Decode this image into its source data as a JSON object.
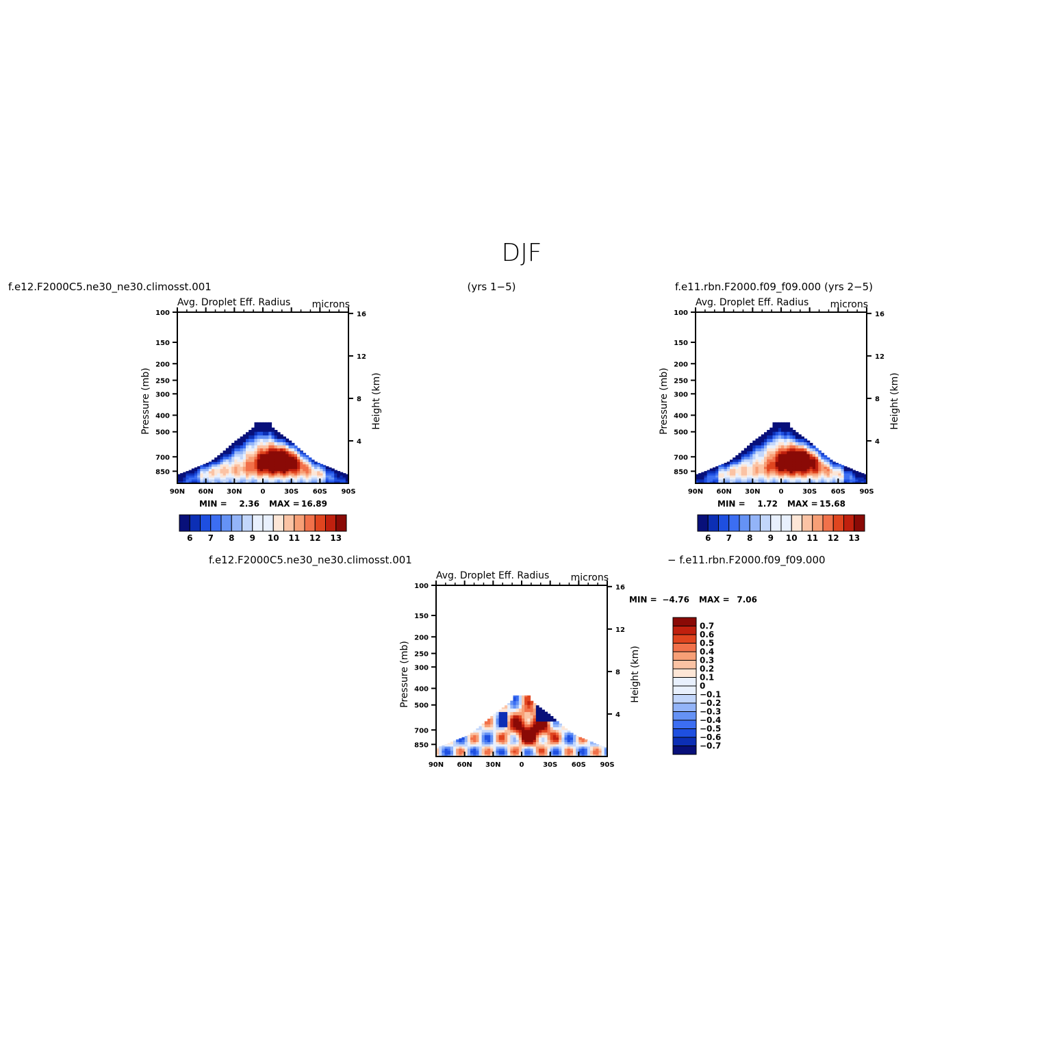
{
  "figure_title": "DJF",
  "top_left_caption": "f.e12.F2000C5.ne30_ne30.climosst.001",
  "top_middle_caption": "(yrs 1−5)",
  "top_right_caption": "f.e11.rbn.F2000.f09_f09.000 (yrs 2−5)",
  "bottom_left_caption": "f.e12.F2000C5.ne30_ne30.climosst.001",
  "bottom_right_caption": "− f.e11.rbn.F2000.f09_f09.000",
  "colors": {
    "field_scale": [
      "#08107a",
      "#0c2fb5",
      "#1e4fe0",
      "#3c6ef2",
      "#6592f5",
      "#93b4f8",
      "#c2d6fb",
      "#e8f0fd",
      "#fde6d6",
      "#fbc3a4",
      "#f79f76",
      "#f1714a",
      "#e0451f",
      "#c0200e",
      "#8a0a06"
    ],
    "diff_scale": [
      "#08107a",
      "#0c2fb5",
      "#1e4fe0",
      "#3c6ef2",
      "#6592f5",
      "#93b4f8",
      "#c2d6fb",
      "#e8f0fd",
      "#fde6d6",
      "#fbc3a4",
      "#f79f76",
      "#f1714a",
      "#e0451f",
      "#c0200e",
      "#8a0a06"
    ]
  },
  "chart_data": [
    {
      "type": "heatmap",
      "id": "panel-control",
      "title": "Avg. Droplet Eff. Radius",
      "units": "microns",
      "xlabel": "",
      "ylabel": "Pressure (mb)",
      "ylabel_right": "Height (km)",
      "x_tick_labels": [
        "90N",
        "60N",
        "30N",
        "0",
        "30S",
        "60S",
        "90S"
      ],
      "x_ticks": [
        90,
        60,
        30,
        0,
        -30,
        -60,
        -90
      ],
      "y_tick_labels": [
        "100",
        "150",
        "200",
        "250",
        "300",
        "400",
        "500",
        "700",
        "850"
      ],
      "y_ticks": [
        100,
        150,
        200,
        250,
        300,
        400,
        500,
        700,
        850
      ],
      "right_tick_labels": [
        "16",
        "12",
        "8",
        "4"
      ],
      "right_ticks": [
        16,
        12,
        8,
        4
      ],
      "ylim": [
        1000,
        100
      ],
      "xlim": [
        90,
        -90
      ],
      "min_label": "MIN =",
      "min_value": "2.36",
      "max_label": "MAX =",
      "max_value": "16.89",
      "colorbar_labels": [
        "6",
        "7",
        "8",
        "9",
        "10",
        "11",
        "12",
        "13"
      ],
      "colorbar_levels": [
        5.5,
        6,
        6.5,
        7,
        7.5,
        8,
        8.5,
        9,
        9.5,
        10,
        10.5,
        11,
        11.5,
        12,
        12.5,
        13,
        13.5
      ],
      "field_max": 16.89,
      "field_min": 2.36
    },
    {
      "type": "heatmap",
      "id": "panel-experiment",
      "title": "Avg. Droplet Eff. Radius",
      "units": "microns",
      "xlabel": "",
      "ylabel": "Pressure (mb)",
      "ylabel_right": "Height (km)",
      "x_tick_labels": [
        "90N",
        "60N",
        "30N",
        "0",
        "30S",
        "60S",
        "90S"
      ],
      "x_ticks": [
        90,
        60,
        30,
        0,
        -30,
        -60,
        -90
      ],
      "y_tick_labels": [
        "100",
        "150",
        "200",
        "250",
        "300",
        "400",
        "500",
        "700",
        "850"
      ],
      "y_ticks": [
        100,
        150,
        200,
        250,
        300,
        400,
        500,
        700,
        850
      ],
      "right_tick_labels": [
        "16",
        "12",
        "8",
        "4"
      ],
      "right_ticks": [
        16,
        12,
        8,
        4
      ],
      "ylim": [
        1000,
        100
      ],
      "xlim": [
        90,
        -90
      ],
      "min_label": "MIN =",
      "min_value": "1.72",
      "max_label": "MAX =",
      "max_value": "15.68",
      "colorbar_labels": [
        "6",
        "7",
        "8",
        "9",
        "10",
        "11",
        "12",
        "13"
      ],
      "colorbar_levels": [
        5.5,
        6,
        6.5,
        7,
        7.5,
        8,
        8.5,
        9,
        9.5,
        10,
        10.5,
        11,
        11.5,
        12,
        12.5,
        13,
        13.5
      ],
      "field_max": 15.68,
      "field_min": 1.72
    },
    {
      "type": "heatmap",
      "id": "panel-difference",
      "title": "Avg. Droplet Eff. Radius",
      "units": "microns",
      "xlabel": "",
      "ylabel": "Pressure (mb)",
      "ylabel_right": "Height (km)",
      "x_tick_labels": [
        "90N",
        "60N",
        "30N",
        "0",
        "30S",
        "60S",
        "90S"
      ],
      "x_ticks": [
        90,
        60,
        30,
        0,
        -30,
        -60,
        -90
      ],
      "y_tick_labels": [
        "100",
        "150",
        "200",
        "250",
        "300",
        "400",
        "500",
        "700",
        "850"
      ],
      "y_ticks": [
        100,
        150,
        200,
        250,
        300,
        400,
        500,
        700,
        850
      ],
      "right_tick_labels": [
        "16",
        "12",
        "8",
        "4"
      ],
      "right_ticks": [
        16,
        12,
        8,
        4
      ],
      "ylim": [
        1000,
        100
      ],
      "xlim": [
        90,
        -90
      ],
      "min_label": "MIN =",
      "min_value": "−4.76",
      "max_label": "MAX =",
      "max_value": "7.06",
      "colorbar_labels": [
        "0.7",
        "0.6",
        "0.5",
        "0.4",
        "0.3",
        "0.2",
        "0.1",
        "0",
        "−0.1",
        "−0.2",
        "−0.3",
        "−0.4",
        "−0.5",
        "−0.6",
        "−0.7"
      ],
      "colorbar_levels": [
        -0.7,
        -0.6,
        -0.5,
        -0.4,
        -0.3,
        -0.2,
        -0.1,
        0,
        0.1,
        0.2,
        0.3,
        0.4,
        0.5,
        0.6,
        0.7
      ],
      "field_max": 7.06,
      "field_min": -4.76
    }
  ]
}
